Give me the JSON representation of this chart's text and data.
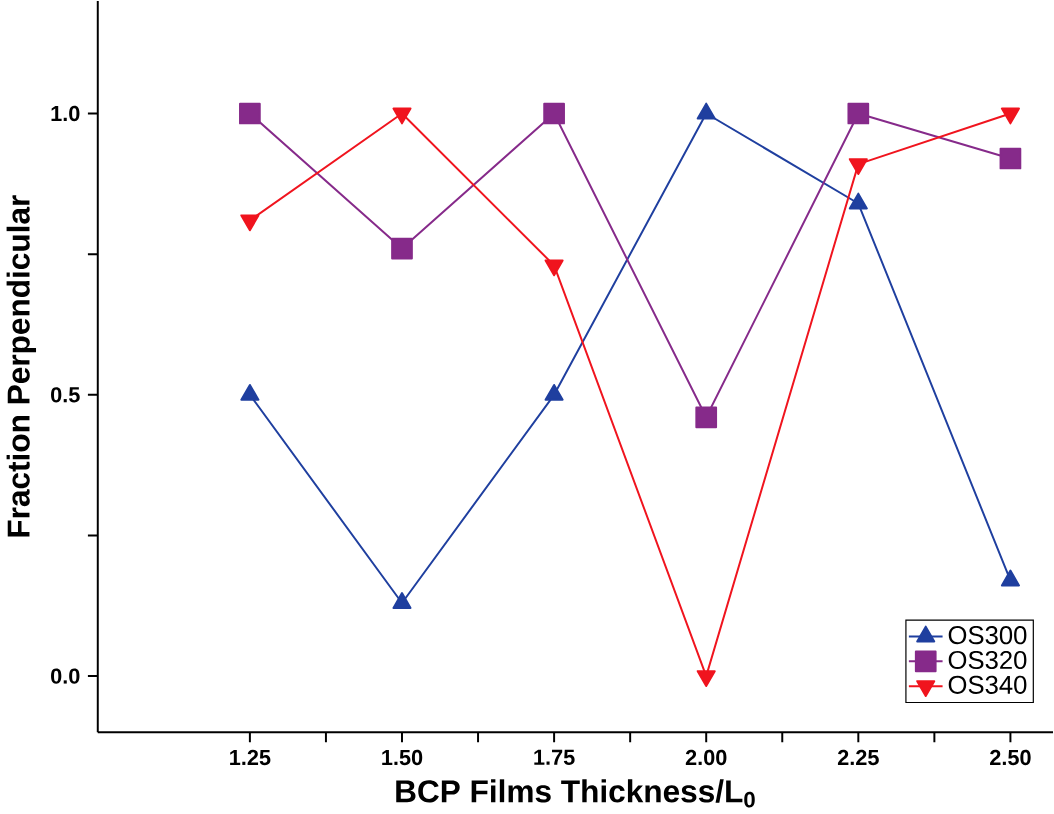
{
  "chart_data": {
    "type": "line",
    "xlabel": "BCP Films Thickness/L$_{0}$",
    "ylabel": "Fraction Perpendicular",
    "x": [
      1.25,
      1.5,
      1.75,
      2.0,
      2.25,
      2.5
    ],
    "series": [
      {
        "name": "OS300",
        "color": "#1f3f9f",
        "marker": "triangle",
        "values": [
          0.5,
          0.13,
          0.5,
          1.0,
          0.84,
          0.17
        ]
      },
      {
        "name": "OS320",
        "color": "#862a8a",
        "marker": "square",
        "values": [
          1.0,
          0.76,
          1.0,
          0.46,
          1.0,
          0.92
        ]
      },
      {
        "name": "OS340",
        "color": "#f0141e",
        "marker": "triangle-down",
        "values": [
          0.81,
          1.0,
          0.73,
          0.0,
          0.91,
          1.0
        ]
      }
    ],
    "xlim": [
      1.0,
      2.57
    ],
    "ylim": [
      -0.1,
      1.2
    ],
    "xticks": [
      1.25,
      {
        "value": 1.375,
        "label": null
      },
      {
        "value": 1.5,
        "label": "1.50"
      },
      {
        "value": 1.625,
        "label": null
      },
      1.75,
      {
        "value": 1.875,
        "label": null
      },
      {
        "value": 2.0,
        "label": "2.00"
      },
      {
        "value": 2.125,
        "label": null
      },
      2.25,
      {
        "value": 2.375,
        "label": null
      },
      {
        "value": 2.5,
        "label": "2.50"
      }
    ],
    "yticks": [
      {
        "value": 0,
        "label": "0.0"
      },
      {
        "value": 0.25,
        "label": null
      },
      {
        "value": 0.5,
        "label": "0.5"
      },
      {
        "value": 0.75,
        "label": null
      },
      {
        "value": 1,
        "label": "1.0"
      }
    ],
    "legend": "bottom right",
    "grid": false,
    "line_style": "solid"
  }
}
